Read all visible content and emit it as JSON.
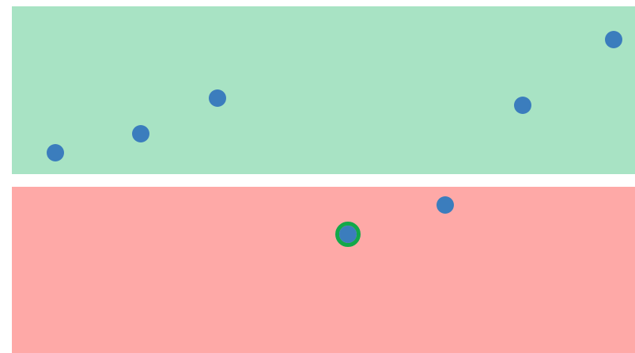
{
  "colors": {
    "top_zone": "#a8e3c4",
    "bottom_zone": "#fea9a7",
    "dot": "#3b7dbd",
    "ring": "#12a84a"
  },
  "zones": [
    {
      "id": "top",
      "label": ""
    },
    {
      "id": "bottom",
      "label": ""
    }
  ],
  "dots": [
    {
      "zone": "top",
      "selected": false
    },
    {
      "zone": "top",
      "selected": false
    },
    {
      "zone": "top",
      "selected": false
    },
    {
      "zone": "top",
      "selected": false
    },
    {
      "zone": "top",
      "selected": false
    },
    {
      "zone": "bottom",
      "selected": false
    },
    {
      "zone": "bottom",
      "selected": true
    }
  ]
}
